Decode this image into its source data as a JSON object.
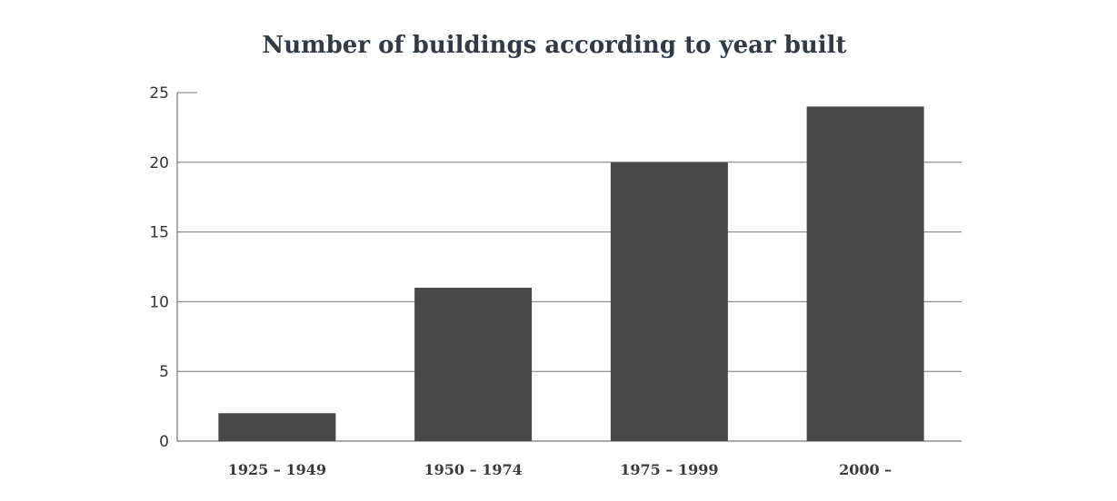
{
  "chart_data": {
    "type": "bar",
    "title": "Number of buildings according to year built",
    "xlabel": "",
    "ylabel": "",
    "categories": [
      "1925 – 1949",
      "1950 – 1974",
      "1975 – 1999",
      "2000 –"
    ],
    "values": [
      2,
      11,
      20,
      24
    ],
    "ylim": [
      0,
      25
    ],
    "yticks": [
      0,
      5,
      10,
      15,
      20,
      25
    ],
    "grid": true,
    "bar_color": "#484848"
  }
}
